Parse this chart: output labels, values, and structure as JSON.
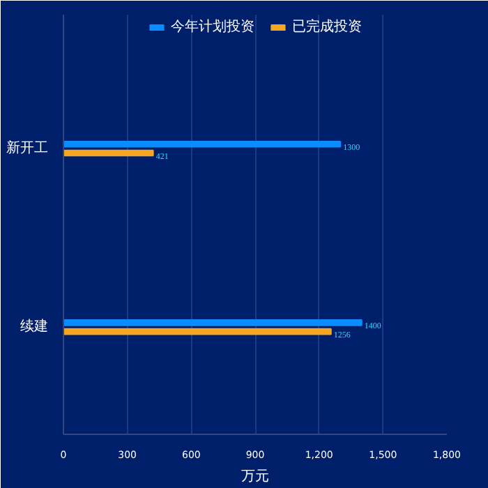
{
  "chart_data": {
    "type": "bar",
    "orientation": "horizontal",
    "categories": [
      "新开工",
      "续建"
    ],
    "series": [
      {
        "name": "今年计划投资",
        "color": "#0a8cff",
        "values": [
          1300,
          1400
        ]
      },
      {
        "name": "已完成投资",
        "color": "#f5a623",
        "values": [
          421,
          1256
        ]
      }
    ],
    "xlabel": "万元",
    "xlim": [
      0,
      1800
    ],
    "xticks": [
      0,
      300,
      600,
      900,
      {
        "value": 1200,
        "label": "1,200"
      },
      {
        "value": 1500,
        "label": "1,500"
      },
      {
        "value": 1800,
        "label": "1,800"
      }
    ],
    "grid": "x",
    "legend": "top",
    "data_labels": true
  }
}
